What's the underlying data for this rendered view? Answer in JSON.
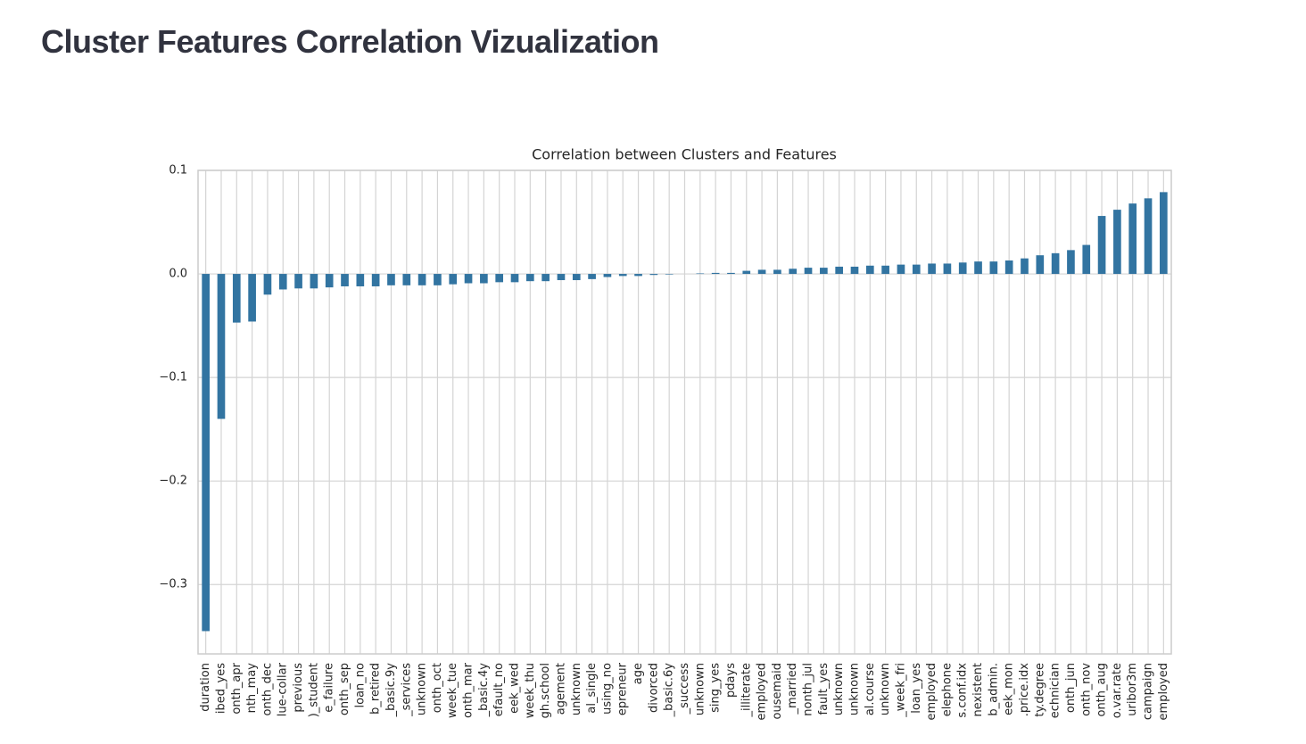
{
  "page_title": "Cluster Features Correlation Vizualization",
  "chart_data": {
    "type": "bar",
    "title": "Correlation between Clusters and Features",
    "categories": [
      "duration",
      "ibed_yes",
      "onth_apr",
      "nth_may",
      "onth_dec",
      "lue-collar",
      "previous",
      ")_student",
      "e_failure",
      "onth_sep",
      "loan_no",
      "b_retired",
      "_basic.9y",
      "_services",
      "unknown",
      "onth_oct",
      "week_tue",
      "onth_mar",
      "_basic.4y",
      "efault_no",
      "eek_wed",
      "week_thu",
      "gh.school",
      "agement",
      "unknown",
      "al_single",
      "using_no",
      "epreneur",
      "age",
      "divorced",
      "_basic.6y",
      "_success",
      "unknown",
      "sing_yes",
      "pdays",
      "_illiterate",
      "employed",
      "ousemaid",
      "_married",
      "nonth_jul",
      "fault_yes",
      "unknown",
      "unknown",
      "al.course",
      "unknown",
      "_week_fri",
      "loan_yes",
      "employed",
      "elephone",
      "s.conf.idx",
      "nexistent",
      "b_admin.",
      "eek_mon",
      ".price.idx",
      "ty.degree",
      "echnician",
      "onth_jun",
      "onth_nov",
      "onth_aug",
      "o.var.rate",
      "uribor3m",
      "campaign",
      "employed"
    ],
    "values": [
      -0.345,
      -0.14,
      -0.047,
      -0.046,
      -0.02,
      -0.015,
      -0.014,
      -0.014,
      -0.013,
      -0.012,
      -0.012,
      -0.012,
      -0.011,
      -0.011,
      -0.011,
      -0.011,
      -0.01,
      -0.009,
      -0.009,
      -0.008,
      -0.008,
      -0.007,
      -0.007,
      -0.006,
      -0.006,
      -0.005,
      -0.003,
      -0.002,
      -0.002,
      -0.001,
      -0.0005,
      0,
      0.0005,
      0.001,
      0.001,
      0.003,
      0.004,
      0.004,
      0.005,
      0.006,
      0.006,
      0.007,
      0.007,
      0.008,
      0.008,
      0.009,
      0.009,
      0.01,
      0.01,
      0.011,
      0.012,
      0.012,
      0.013,
      0.015,
      0.018,
      0.02,
      0.023,
      0.028,
      0.056,
      0.062,
      0.068,
      0.073,
      0.079
    ],
    "color": "#3274a1",
    "ylim": [
      -0.367,
      0.1
    ],
    "yticks": [
      {
        "value": 0.1,
        "label": "0.1"
      },
      {
        "value": 0,
        "label": "0.0"
      },
      {
        "value": -0.1,
        "label": "−0.1"
      },
      {
        "value": -0.2,
        "label": "−0.2"
      },
      {
        "value": -0.3,
        "label": "−0.3"
      }
    ],
    "grid": true
  }
}
